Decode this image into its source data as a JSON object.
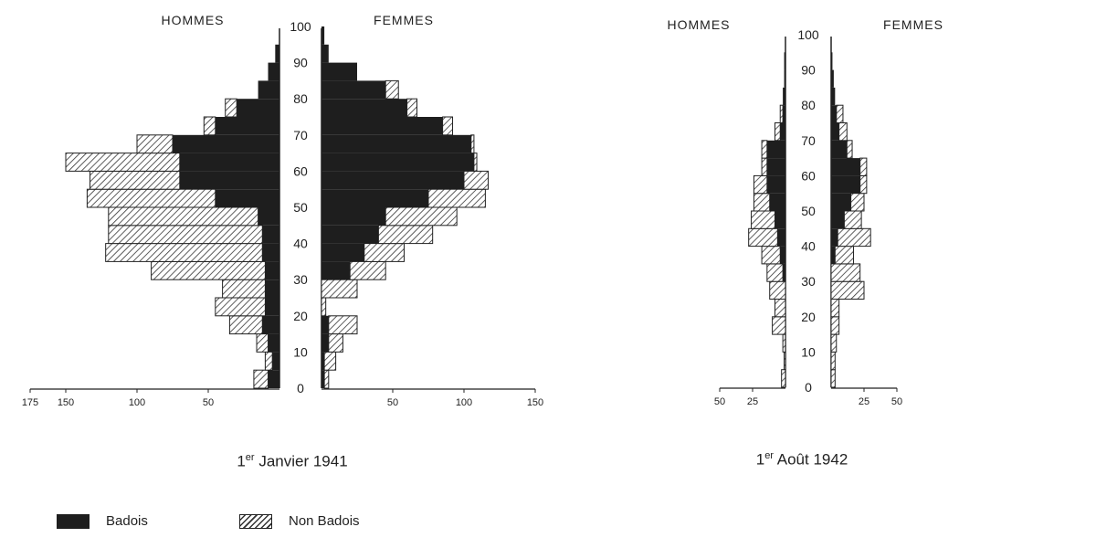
{
  "chart_data": [
    {
      "type": "bar",
      "title": "Janvier 1941",
      "title_prefix": "1",
      "title_sup": "er",
      "left_label": "HOMMES",
      "right_label": "FEMMES",
      "age_ticks": [
        "0",
        "10",
        "20",
        "30",
        "40",
        "50",
        "60",
        "70",
        "80",
        "90",
        "100"
      ],
      "left_x_ticks": [
        "175",
        "150",
        "100",
        "50"
      ],
      "left_x_tick_values": [
        175,
        150,
        100,
        50
      ],
      "right_x_ticks": [
        "50",
        "100",
        "150"
      ],
      "right_x_tick_values": [
        50,
        100,
        150
      ],
      "xlim": [
        0,
        175
      ],
      "age_groups": [
        0,
        5,
        10,
        15,
        20,
        25,
        30,
        35,
        40,
        45,
        50,
        55,
        60,
        65,
        70,
        75,
        80,
        85,
        90,
        95
      ],
      "series": [
        {
          "name": "Badois",
          "side": "hommes",
          "values": [
            8,
            5,
            8,
            12,
            10,
            10,
            10,
            12,
            12,
            15,
            45,
            70,
            70,
            75,
            45,
            30,
            15,
            8,
            3,
            0
          ]
        },
        {
          "name": "Non Badois",
          "side": "hommes",
          "values": [
            10,
            5,
            8,
            23,
            35,
            30,
            80,
            110,
            108,
            105,
            90,
            63,
            80,
            25,
            8,
            8,
            0,
            0,
            0,
            0
          ]
        },
        {
          "name": "Badois",
          "side": "femmes",
          "values": [
            2,
            2,
            5,
            5,
            0,
            0,
            20,
            30,
            40,
            45,
            75,
            100,
            107,
            105,
            85,
            60,
            45,
            25,
            5,
            2
          ]
        },
        {
          "name": "Non Badois",
          "side": "femmes",
          "values": [
            3,
            8,
            10,
            20,
            3,
            25,
            25,
            28,
            38,
            50,
            40,
            17,
            2,
            2,
            7,
            7,
            9,
            0,
            0,
            0
          ]
        }
      ]
    },
    {
      "type": "bar",
      "title": "Août 1942",
      "title_prefix": "1",
      "title_sup": "er",
      "left_label": "HOMMES",
      "right_label": "FEMMES",
      "age_ticks": [
        "0",
        "10",
        "20",
        "30",
        "40",
        "50",
        "60",
        "70",
        "80",
        "90",
        "100"
      ],
      "left_x_ticks": [
        "50",
        "25"
      ],
      "left_x_tick_values": [
        50,
        25
      ],
      "right_x_ticks": [
        "25",
        "50"
      ],
      "right_x_tick_values": [
        25,
        50
      ],
      "xlim": [
        0,
        50
      ],
      "age_groups": [
        0,
        5,
        10,
        15,
        20,
        25,
        30,
        35,
        40,
        45,
        50,
        55,
        60,
        65,
        70,
        75,
        80,
        85,
        90,
        95
      ],
      "series": [
        {
          "name": "Badois",
          "side": "hommes",
          "values": [
            0,
            0,
            0,
            0,
            0,
            0,
            2,
            4,
            6,
            8,
            12,
            14,
            14,
            14,
            4,
            2,
            2,
            1,
            1,
            0
          ]
        },
        {
          "name": "Non Badois",
          "side": "hommes",
          "values": [
            3,
            1,
            2,
            10,
            8,
            12,
            12,
            14,
            22,
            18,
            12,
            10,
            4,
            4,
            4,
            2,
            0,
            0,
            0,
            0
          ]
        },
        {
          "name": "Badois",
          "side": "femmes",
          "values": [
            0,
            0,
            0,
            0,
            0,
            0,
            0,
            3,
            5,
            10,
            15,
            22,
            22,
            12,
            6,
            4,
            3,
            2,
            1,
            0
          ]
        },
        {
          "name": "Non Badois",
          "side": "femmes",
          "values": [
            3,
            3,
            4,
            6,
            6,
            25,
            22,
            14,
            25,
            13,
            10,
            5,
            5,
            4,
            6,
            5,
            0,
            0,
            0,
            0
          ]
        }
      ]
    }
  ],
  "legend": {
    "badois": "Badois",
    "non_badois": "Non Badois"
  }
}
